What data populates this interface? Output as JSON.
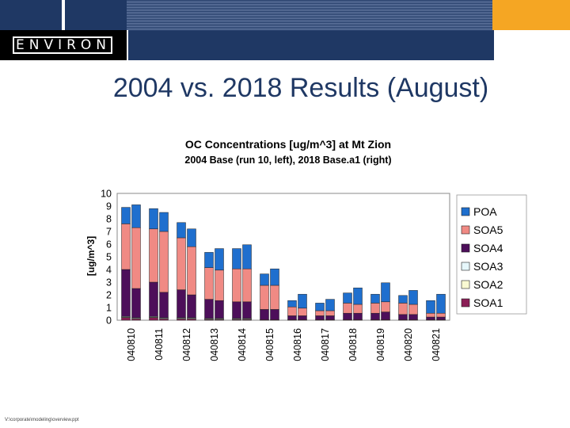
{
  "header": {
    "logo_text": "ENVIRON"
  },
  "slide": {
    "title": "2004 vs. 2018 Results (August)",
    "footer": "V:\\corporate\\modeling\\overview.ppt"
  },
  "colors": {
    "POA": "#1f6fce",
    "SOA5": "#f08a84",
    "SOA4": "#4d0f5a",
    "SOA3": "#e6f7fb",
    "SOA2": "#fafad2",
    "SOA1": "#8b1e56"
  },
  "chart_data": {
    "type": "bar",
    "stacked": true,
    "title": "OC Concentrations  [ug/m^3] at Mt Zion",
    "subtitle": "2004 Base (run 10, left), 2018 Base.a1 (right)",
    "ylabel": "[ug/m^3]",
    "xlabel": "",
    "ylim": [
      0,
      10
    ],
    "yticks": [
      "0",
      "1",
      "2",
      "3",
      "4",
      "5",
      "6",
      "7",
      "8",
      "9",
      "10"
    ],
    "categories": [
      "040810",
      "040811",
      "040812",
      "040813",
      "040814",
      "040815",
      "040816",
      "040817",
      "040818",
      "040819",
      "040820",
      "040821"
    ],
    "legend": [
      "POA",
      "SOA5",
      "SOA4",
      "SOA3",
      "SOA2",
      "SOA1"
    ],
    "legend_position": "right",
    "series_2004": [
      {
        "name": "SOA1",
        "values": [
          0.2,
          0.2,
          0.1,
          0.05,
          0.05,
          0.05,
          0.05,
          0.05,
          0.05,
          0.05,
          0.05,
          0.05
        ]
      },
      {
        "name": "SOA2",
        "values": [
          0.05,
          0.05,
          0.05,
          0.05,
          0.05,
          0.0,
          0.0,
          0.0,
          0.0,
          0.0,
          0.0,
          0.0
        ]
      },
      {
        "name": "SOA3",
        "values": [
          0.05,
          0.05,
          0.05,
          0.05,
          0.05,
          0.0,
          0.0,
          0.0,
          0.0,
          0.0,
          0.0,
          0.0
        ]
      },
      {
        "name": "SOA4",
        "values": [
          3.7,
          2.7,
          2.2,
          1.5,
          1.3,
          0.8,
          0.3,
          0.3,
          0.5,
          0.5,
          0.4,
          0.2
        ]
      },
      {
        "name": "SOA5",
        "values": [
          3.6,
          4.2,
          4.1,
          2.5,
          2.6,
          1.9,
          0.7,
          0.4,
          0.8,
          0.8,
          0.9,
          0.3
        ]
      },
      {
        "name": "POA",
        "values": [
          1.3,
          1.6,
          1.2,
          1.2,
          1.6,
          0.9,
          0.5,
          0.6,
          0.8,
          0.7,
          0.6,
          1.0
        ]
      }
    ],
    "series_2018": [
      {
        "name": "SOA1",
        "values": [
          0.1,
          0.1,
          0.1,
          0.05,
          0.05,
          0.05,
          0.05,
          0.05,
          0.05,
          0.05,
          0.05,
          0.05
        ]
      },
      {
        "name": "SOA2",
        "values": [
          0.05,
          0.05,
          0.05,
          0.05,
          0.05,
          0.0,
          0.0,
          0.0,
          0.0,
          0.0,
          0.0,
          0.0
        ]
      },
      {
        "name": "SOA3",
        "values": [
          0.05,
          0.05,
          0.05,
          0.05,
          0.05,
          0.0,
          0.0,
          0.0,
          0.0,
          0.0,
          0.0,
          0.0
        ]
      },
      {
        "name": "SOA4",
        "values": [
          2.3,
          2.0,
          1.8,
          1.4,
          1.3,
          0.8,
          0.3,
          0.3,
          0.5,
          0.6,
          0.4,
          0.2
        ]
      },
      {
        "name": "SOA5",
        "values": [
          4.8,
          4.8,
          3.8,
          2.4,
          2.6,
          1.9,
          0.6,
          0.4,
          0.7,
          0.8,
          0.8,
          0.3
        ]
      },
      {
        "name": "POA",
        "values": [
          1.8,
          1.5,
          1.4,
          1.7,
          1.9,
          1.3,
          1.1,
          0.9,
          1.3,
          1.5,
          1.1,
          1.5
        ]
      }
    ]
  }
}
